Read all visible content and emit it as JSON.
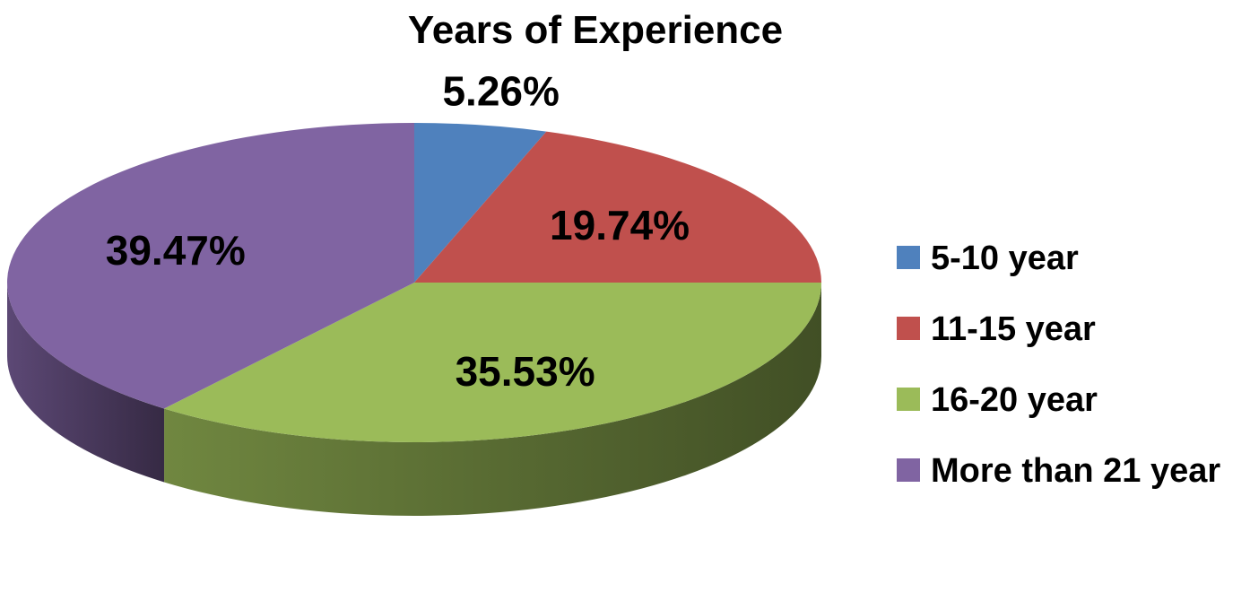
{
  "chart_data": {
    "type": "pie",
    "title": "Years of Experience",
    "categories": [
      "5-10 year",
      "11-15 year",
      "16-20 year",
      "More than 21 year"
    ],
    "values": [
      5.26,
      19.74,
      35.53,
      39.47
    ],
    "data_labels": [
      "5.26%",
      "19.74%",
      "35.53%",
      "39.47%"
    ],
    "colors": [
      "#4f81bd",
      "#c0504d",
      "#9bbb59",
      "#8064a2"
    ],
    "legend_position": "right",
    "style": "3d"
  }
}
